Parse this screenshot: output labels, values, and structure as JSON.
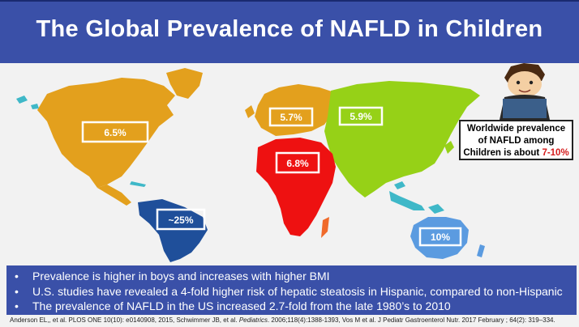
{
  "title": "The Global Prevalence of NAFLD in Children",
  "regions": {
    "north_america": {
      "label": "6.5%",
      "color": "#e3a01d"
    },
    "europe": {
      "label": "5.7%",
      "color": "#e3a01d"
    },
    "asia": {
      "label": "5.9%",
      "color": "#96d117"
    },
    "africa": {
      "label": "6.8%",
      "color": "#ee1111"
    },
    "south_america": {
      "label": "~25%",
      "color": "#1f4f9a"
    },
    "australia": {
      "label": "10%",
      "color": "#5b9be0"
    }
  },
  "callout": {
    "line1": "Worldwide prevalence",
    "line2": "of NAFLD among",
    "line3_prefix": "Children is about ",
    "highlight": "7-10%"
  },
  "bullets": [
    "Prevalence is higher in boys and increases with higher BMI",
    "U.S. studies have revealed a 4-fold higher risk of hepatic steatosis in Hispanic, compared to non-Hispanic",
    "The prevalence of NAFLD in the US increased 2.7-fold from the late 1980’s to 2010"
  ],
  "bullet_symbol": "•",
  "references": {
    "part1": "Anderson EL,, et al. PLOS ONE 10(10): e0140908, 2015, Schwimmer JB, et al. ",
    "journal": "Pediatrics",
    "part2": ". 2006;118(4):1388-1393, Vos M et al. J Pediatr Gastroenterol Nutr. 2017 February ; 64(2): 319–334."
  }
}
